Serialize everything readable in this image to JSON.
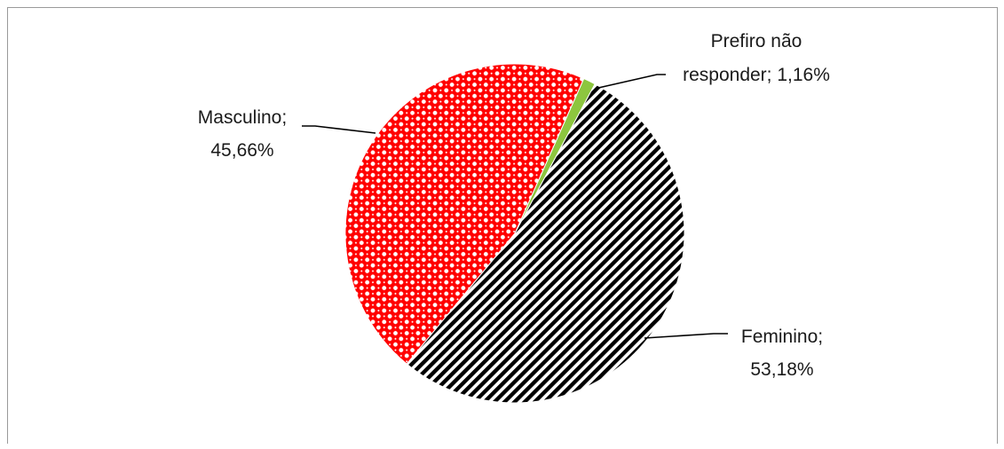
{
  "chart_data": {
    "type": "pie",
    "title": "",
    "slices": [
      {
        "label": "Prefiro não responder",
        "label_lines": [
          "Prefiro não",
          "responder; 1,16%"
        ],
        "value": 1.16,
        "color": "#8dc63f",
        "pattern": "solid"
      },
      {
        "label": "Feminino",
        "label_lines": [
          "Feminino;",
          "53,18%"
        ],
        "value": 53.18,
        "color": "#000000",
        "pattern": "diagonal-stripes"
      },
      {
        "label": "Masculino",
        "label_lines": [
          "Masculino;",
          "45,66%"
        ],
        "value": 45.66,
        "color": "#ff0000",
        "pattern": "dotted-grid"
      }
    ],
    "start_angle_deg": 24,
    "direction": "clockwise",
    "legend": "none",
    "data_labels": "outside-with-leader-lines"
  }
}
